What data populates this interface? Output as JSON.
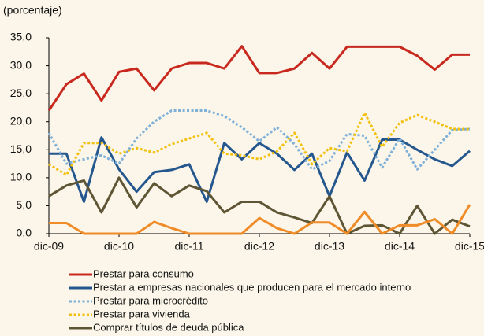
{
  "chart_data": {
    "type": "line",
    "y_axis_label": "(porcentaje)",
    "categories": [
      "dic-09",
      null,
      null,
      null,
      "dic-10",
      null,
      null,
      null,
      "dic-11",
      null,
      null,
      null,
      "dic-12",
      null,
      null,
      null,
      "dic-13",
      null,
      null,
      null,
      "dic-14",
      null,
      null,
      null,
      "dic-15"
    ],
    "ylim": [
      0,
      35
    ],
    "yticks": [
      {
        "value": 0,
        "label": "0,0"
      },
      {
        "value": 5,
        "label": "5,0"
      },
      {
        "value": 10,
        "label": "10,0"
      },
      {
        "value": 15,
        "label": "15,0"
      },
      {
        "value": 20,
        "label": "20,0"
      },
      {
        "value": 25,
        "label": "25,0"
      },
      {
        "value": 30,
        "label": "30,0"
      },
      {
        "value": 35,
        "label": "35,0"
      }
    ],
    "grid": false,
    "legend_position": "bottom",
    "series": [
      {
        "name": "Prestar para consumo",
        "color": "#c8281e",
        "style": "solid",
        "values": [
          22,
          26.7,
          28.6,
          23.8,
          28.9,
          29.5,
          25.6,
          29.5,
          30.5,
          30.5,
          29.5,
          33.5,
          28.7,
          28.7,
          29.5,
          32.3,
          29.5,
          33.4,
          33.4,
          33.4,
          33.4,
          31.8,
          29.3,
          32,
          32
        ]
      },
      {
        "name": "Prestar a empresas nacionales que producen para el mercado interno",
        "color": "#25578f",
        "style": "solid",
        "values": [
          14.3,
          14.3,
          5.7,
          17.2,
          11.5,
          7.5,
          11,
          11.4,
          12.4,
          5.7,
          16.2,
          13.3,
          16.2,
          14.3,
          11.4,
          14.3,
          6.7,
          14.5,
          9.5,
          16.8,
          16.8,
          15,
          13.3,
          12.1,
          14.8
        ]
      },
      {
        "name": "Prestar para microcrédito",
        "color": "#7fb0d8",
        "style": "dotted",
        "values": [
          18,
          12.5,
          13.3,
          14,
          12.5,
          17,
          20,
          22,
          22,
          22,
          21,
          19,
          16.5,
          19,
          16,
          11.5,
          13,
          17.8,
          17.5,
          11.8,
          17,
          11.5,
          15,
          18.5,
          18.7
        ]
      },
      {
        "name": "Prestar para vivienda",
        "color": "#f2c00e",
        "style": "dotted",
        "values": [
          12.4,
          10.5,
          16.2,
          16.2,
          14.3,
          15.3,
          14.5,
          16,
          17,
          18,
          14.3,
          14,
          13.3,
          14.7,
          18,
          12.4,
          15.3,
          14.7,
          21.6,
          15.5,
          19.8,
          21.2,
          20,
          18.7,
          18.7
        ]
      },
      {
        "name": "Comprar títulos de deuda pública",
        "color": "#5e5535",
        "style": "solid",
        "values": [
          6.7,
          8.6,
          9.5,
          3.8,
          10,
          4.7,
          9,
          6.7,
          8.6,
          7.6,
          3.8,
          5.7,
          5.7,
          3.8,
          2.9,
          1.9,
          6.7,
          0,
          1.4,
          1.5,
          0,
          5,
          0,
          2.5,
          1.3
        ]
      },
      {
        "color": "#f08c28",
        "style": "solid",
        "values": [
          1.9,
          1.9,
          0,
          0,
          0,
          0,
          2.1,
          1,
          0,
          0,
          0,
          0,
          2.8,
          1,
          0,
          2,
          2,
          0,
          3.9,
          0,
          1.5,
          1.5,
          2.6,
          0,
          5.2
        ]
      }
    ]
  }
}
